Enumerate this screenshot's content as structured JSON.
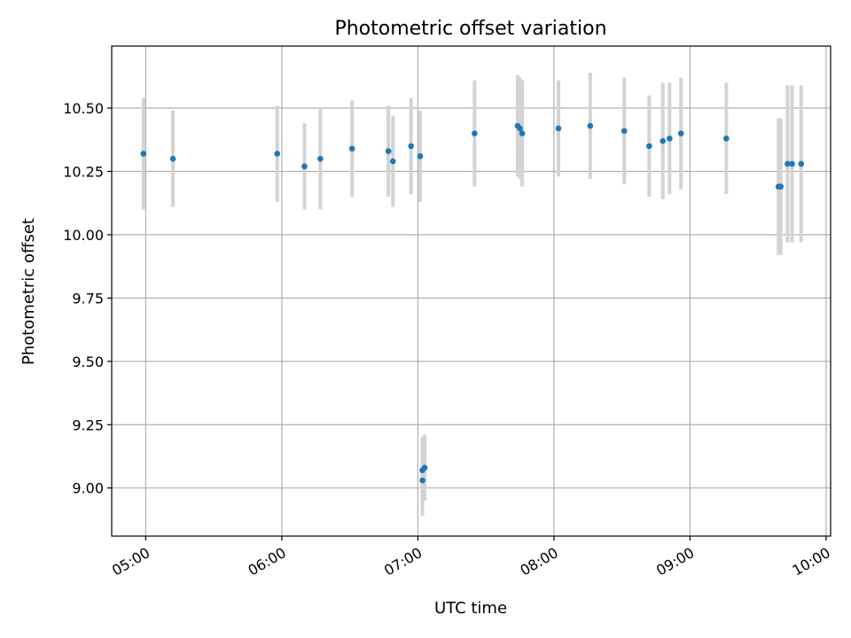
{
  "chart_data": {
    "type": "scatter",
    "title": "Photometric offset variation",
    "xlabel": "UTC time",
    "ylabel": "Photometric offset",
    "xlim": [
      "04:45",
      "10:02"
    ],
    "ylim": [
      8.81,
      10.745
    ],
    "grid": true,
    "x_ticks": [
      "05:00",
      "06:00",
      "07:00",
      "08:00",
      "09:00",
      "10:00"
    ],
    "y_ticks": [
      9.0,
      9.25,
      9.5,
      9.75,
      10.0,
      10.25,
      10.5
    ],
    "y_tick_labels": [
      "9.00",
      "9.25",
      "9.50",
      "9.75",
      "10.00",
      "10.25",
      "10.50"
    ],
    "point_color": "#1f77b4",
    "error_bar_color": "#d3d3d3",
    "points": [
      {
        "t": "04:59",
        "y": 10.32,
        "err": 0.22
      },
      {
        "t": "05:12",
        "y": 10.3,
        "err": 0.19
      },
      {
        "t": "05:58",
        "y": 10.32,
        "err": 0.19
      },
      {
        "t": "06:10",
        "y": 10.27,
        "err": 0.17
      },
      {
        "t": "06:17",
        "y": 10.3,
        "err": 0.2
      },
      {
        "t": "06:31",
        "y": 10.34,
        "err": 0.19
      },
      {
        "t": "06:47",
        "y": 10.33,
        "err": 0.18
      },
      {
        "t": "06:49",
        "y": 10.29,
        "err": 0.18
      },
      {
        "t": "06:57",
        "y": 10.35,
        "err": 0.19
      },
      {
        "t": "07:01",
        "y": 10.31,
        "err": 0.18
      },
      {
        "t": "07:02",
        "y": 9.03,
        "err": 0.14
      },
      {
        "t": "07:02",
        "y": 9.07,
        "err": 0.13
      },
      {
        "t": "07:03",
        "y": 9.08,
        "err": 0.13
      },
      {
        "t": "07:25",
        "y": 10.4,
        "err": 0.21
      },
      {
        "t": "07:44",
        "y": 10.43,
        "err": 0.2
      },
      {
        "t": "07:45",
        "y": 10.42,
        "err": 0.2
      },
      {
        "t": "07:46",
        "y": 10.4,
        "err": 0.21
      },
      {
        "t": "08:02",
        "y": 10.42,
        "err": 0.19
      },
      {
        "t": "08:16",
        "y": 10.43,
        "err": 0.21
      },
      {
        "t": "08:31",
        "y": 10.41,
        "err": 0.21
      },
      {
        "t": "08:42",
        "y": 10.35,
        "err": 0.2
      },
      {
        "t": "08:48",
        "y": 10.37,
        "err": 0.23
      },
      {
        "t": "08:51",
        "y": 10.38,
        "err": 0.22
      },
      {
        "t": "08:56",
        "y": 10.4,
        "err": 0.22
      },
      {
        "t": "09:16",
        "y": 10.38,
        "err": 0.22
      },
      {
        "t": "09:39",
        "y": 10.19,
        "err": 0.27
      },
      {
        "t": "09:40",
        "y": 10.19,
        "err": 0.27
      },
      {
        "t": "09:43",
        "y": 10.28,
        "err": 0.31
      },
      {
        "t": "09:45",
        "y": 10.28,
        "err": 0.31
      },
      {
        "t": "09:49",
        "y": 10.28,
        "err": 0.31
      }
    ]
  }
}
